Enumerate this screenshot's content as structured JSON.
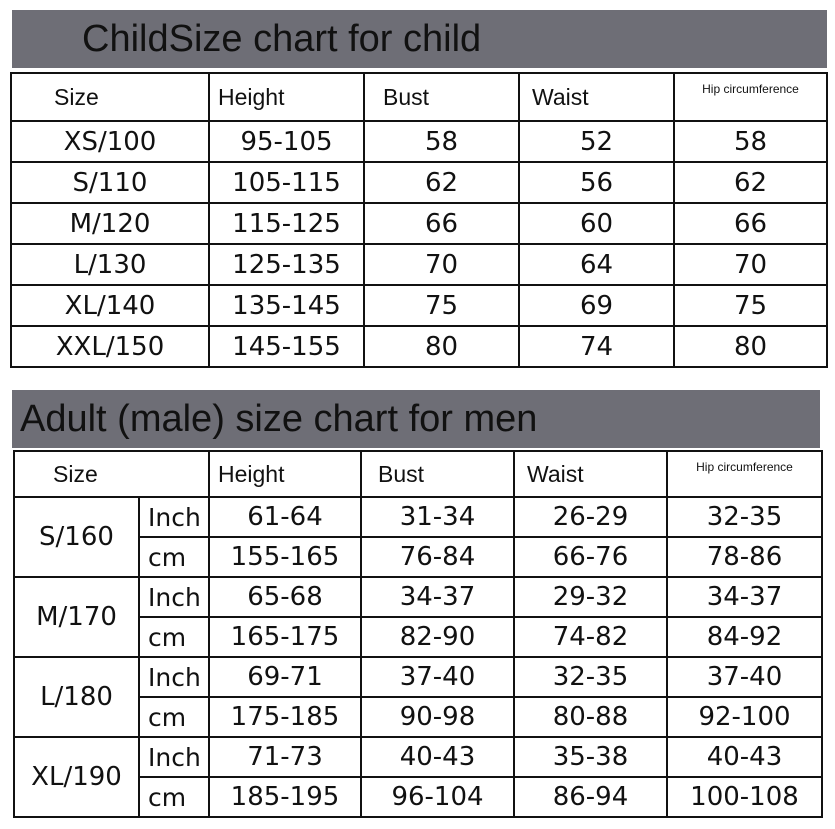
{
  "child": {
    "title": "ChildSize chart for child",
    "headers": [
      "Size",
      "Height",
      "Bust",
      "Waist",
      "Hip circumference"
    ],
    "rows": [
      [
        "XS/100",
        "95-105",
        "58",
        "52",
        "58"
      ],
      [
        "S/110",
        "105-115",
        "62",
        "56",
        "62"
      ],
      [
        "M/120",
        "115-125",
        "66",
        "60",
        "66"
      ],
      [
        "L/130",
        "125-135",
        "70",
        "64",
        "70"
      ],
      [
        "XL/140",
        "135-145",
        "75",
        "69",
        "75"
      ],
      [
        "XXL/150",
        "145-155",
        "80",
        "74",
        "80"
      ]
    ]
  },
  "adult": {
    "title": "Adult (male) size chart for men",
    "headers": [
      "Size",
      "Height",
      "Bust",
      "Waist",
      "Hip circumference"
    ],
    "sizes": [
      {
        "size": "S/160",
        "inch": {
          "unit": "Inch",
          "height": "61-64",
          "bust": "31-34",
          "waist": "26-29",
          "hip": "32-35"
        },
        "cm": {
          "unit": "cm",
          "height": "155-165",
          "bust": "76-84",
          "waist": "66-76",
          "hip": "78-86"
        }
      },
      {
        "size": "M/170",
        "inch": {
          "unit": "Inch",
          "height": "65-68",
          "bust": "34-37",
          "waist": "29-32",
          "hip": "34-37"
        },
        "cm": {
          "unit": "cm",
          "height": "165-175",
          "bust": "82-90",
          "waist": "74-82",
          "hip": "84-92"
        }
      },
      {
        "size": "L/180",
        "inch": {
          "unit": "Inch",
          "height": "69-71",
          "bust": "37-40",
          "waist": "32-35",
          "hip": "37-40"
        },
        "cm": {
          "unit": "cm",
          "height": "175-185",
          "bust": "90-98",
          "waist": "80-88",
          "hip": "92-100"
        }
      },
      {
        "size": "XL/190",
        "inch": {
          "unit": "Inch",
          "height": "71-73",
          "bust": "40-43",
          "waist": "35-38",
          "hip": "40-43"
        },
        "cm": {
          "unit": "cm",
          "height": "185-195",
          "bust": "96-104",
          "waist": "86-94",
          "hip": "100-108"
        }
      }
    ]
  },
  "colors": {
    "banner": "#6e6e76",
    "border": "#111111",
    "background": "#ffffff"
  }
}
